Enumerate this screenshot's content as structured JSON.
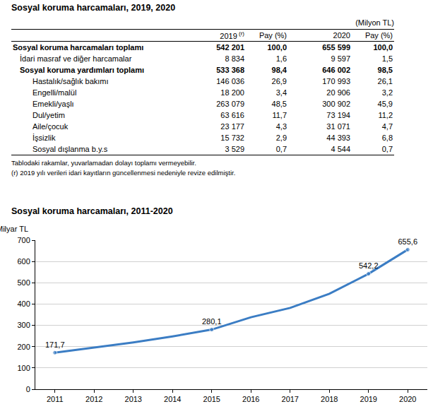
{
  "table": {
    "title": "Sosyal koruma harcamaları, 2019, 2020",
    "unit": "(Milyon TL)",
    "columns": [
      "2019",
      "Pay (%)",
      "2020",
      "Pay (%)"
    ],
    "revision_mark": "(r)",
    "rows": [
      [
        "Sosyal koruma harcamaları toplamı",
        "542 201",
        "100,0",
        "655 599",
        "100,0"
      ],
      [
        "İdari masraf ve diğer harcamalar",
        "8 834",
        "1,6",
        "9 597",
        "1,5"
      ],
      [
        "Sosyal koruma yardımları toplamı",
        "533 368",
        "98,4",
        "646 002",
        "98,5"
      ],
      [
        "Hastalık/sağlık bakımı",
        "146 036",
        "26,9",
        "170 993",
        "26,1"
      ],
      [
        "Engelli/malül",
        "18 200",
        "3,4",
        "20 906",
        "3,2"
      ],
      [
        "Emekli/yaşlı",
        "263 079",
        "48,5",
        "300 902",
        "45,9"
      ],
      [
        "Dul/yetim",
        "63 616",
        "11,7",
        "73 194",
        "11,2"
      ],
      [
        "Aile/çocuk",
        "23 177",
        "4,3",
        "31 071",
        "4,7"
      ],
      [
        "İşsizlik",
        "15 732",
        "2,9",
        "44 393",
        "6,8"
      ],
      [
        "Sosyal dışlanma b.y.s",
        "3 529",
        "0,7",
        "4 544",
        "0,7"
      ]
    ],
    "notes": [
      "Tablodaki rakamlar, yuvarlamadan dolayı toplamı vermeyebilir.",
      "(r) 2019 yılı verileri idari kayıtların güncellenmesi nedeniyle revize edilmiştir."
    ]
  },
  "chart_data": {
    "type": "line",
    "title": "Sosyal koruma harcamaları, 2011-2020",
    "y_label": "Milyar TL",
    "x": [
      2011,
      2012,
      2013,
      2014,
      2015,
      2016,
      2017,
      2018,
      2019,
      2020
    ],
    "values": [
      171.7,
      195,
      220,
      248,
      280.1,
      338,
      382,
      448,
      542.2,
      655.6
    ],
    "value_labels": [
      "171,7",
      null,
      null,
      null,
      "280,1",
      null,
      null,
      null,
      "542,2",
      "655,6"
    ],
    "data_labels": true,
    "color": "#3b7dc4",
    "xlim": [
      2010.5,
      2020.5
    ],
    "xticks": [
      2011,
      2012,
      2013,
      2014,
      2015,
      2016,
      2017,
      2018,
      2019,
      2020
    ],
    "ylim": [
      0,
      700
    ],
    "yticks": [
      0,
      100,
      200,
      300,
      400,
      500,
      600,
      700
    ],
    "grid": true
  }
}
